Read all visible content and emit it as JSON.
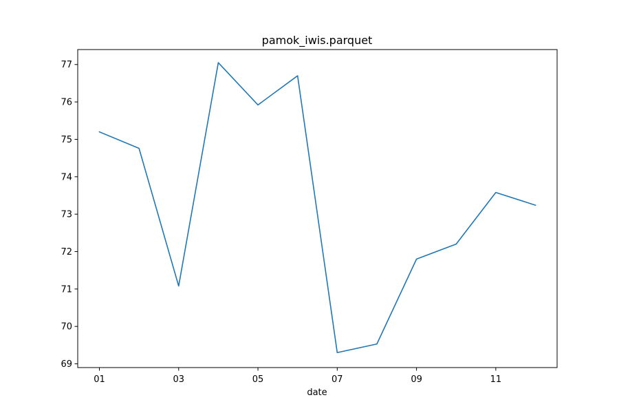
{
  "chart_data": {
    "type": "line",
    "title": "pamok_iwis.parquet",
    "xlabel": "date",
    "ylabel": "",
    "categories": [
      "01",
      "02",
      "03",
      "04",
      "05",
      "06",
      "07",
      "08",
      "09",
      "10",
      "11",
      "12"
    ],
    "x_tick_labels": [
      "01",
      "03",
      "05",
      "07",
      "09",
      "11"
    ],
    "y_ticks": [
      69,
      70,
      71,
      72,
      73,
      74,
      75,
      76,
      77
    ],
    "ylim": [
      68.9,
      77.4
    ],
    "series": [
      {
        "color": "#1f77b4",
        "values": [
          75.2,
          74.76,
          71.08,
          77.05,
          75.92,
          76.7,
          69.3,
          69.53,
          71.8,
          72.2,
          73.58,
          73.24
        ]
      }
    ],
    "grid": false,
    "legend": "none"
  }
}
